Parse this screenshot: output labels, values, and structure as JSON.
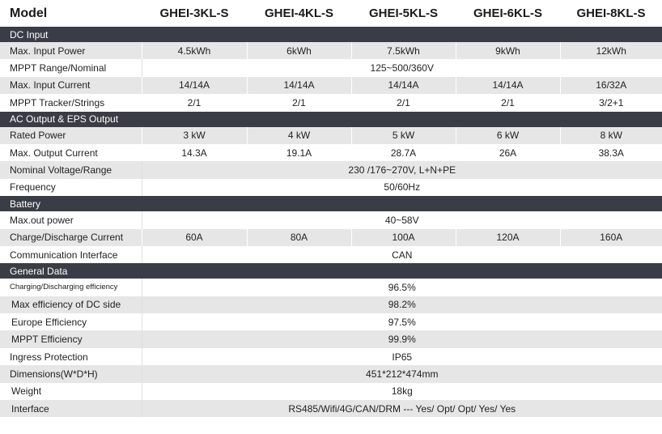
{
  "header": {
    "model_label": "Model",
    "models": [
      "GHEI-3KL-S",
      "GHEI-4KL-S",
      "GHEI-5KL-S",
      "GHEI-6KL-S",
      "GHEI-8KL-S"
    ]
  },
  "sections": {
    "dc_input": {
      "title": "DC Input",
      "max_input_power": {
        "label": "Max. Input Power",
        "values": [
          "4.5kWh",
          "6kWh",
          "7.5kWh",
          "9kWh",
          "12kWh"
        ]
      },
      "mppt_range": {
        "label": "MPPT Range/Nominal",
        "value": "125~500/360V"
      },
      "max_input_current": {
        "label": "Max. Input Current",
        "values": [
          "14/14A",
          "14/14A",
          "14/14A",
          "14/14A",
          "16/32A"
        ]
      },
      "mppt_tracker": {
        "label": "MPPT Tracker/Strings",
        "values": [
          "2/1",
          "2/1",
          "2/1",
          "2/1",
          "3/2+1"
        ]
      }
    },
    "ac_output": {
      "title": "AC Output & EPS Output",
      "rated_power": {
        "label": "Rated Power",
        "values": [
          "3 kW",
          "4 kW",
          "5 kW",
          "6 kW",
          "8 kW"
        ]
      },
      "max_output_current": {
        "label": "Max. Output Current",
        "values": [
          "14.3A",
          "19.1A",
          "28.7A",
          "26A",
          "38.3A"
        ]
      },
      "nominal_voltage": {
        "label": "Nominal Voltage/Range",
        "value": "230 /176~270V, L+N+PE"
      },
      "frequency": {
        "label": "Frequency",
        "value": "50/60Hz"
      }
    },
    "battery": {
      "title": "Battery",
      "max_out_power": {
        "label": "Max.out power",
        "value": "40~58V"
      },
      "charge_current": {
        "label": "Charge/Discharge Current",
        "values": [
          "60A",
          "80A",
          "100A",
          "120A",
          "160A"
        ]
      },
      "comm_interface": {
        "label": "Communication Interface",
        "value": "CAN"
      }
    },
    "general": {
      "title": "General Data",
      "charging_eff": {
        "label": "Charging/Discharging efficiency",
        "value": "96.5%"
      },
      "max_eff_dc": {
        "label": "Max efficiency of DC side",
        "value": "98.2%"
      },
      "europe_eff": {
        "label": "Europe Efficiency",
        "value": "97.5%"
      },
      "mppt_eff": {
        "label": "MPPT Efficiency",
        "value": "99.9%"
      },
      "ingress": {
        "label": "Ingress Protection",
        "value": "IP65"
      },
      "dimensions": {
        "label": "Dimensions(W*D*H)",
        "value": "451*212*474mm"
      },
      "weight": {
        "label": "Weight",
        "value": "18kg"
      },
      "interface": {
        "label": "Interface",
        "value": "RS485/Wifi/4G/CAN/DRM --- Yes/ Opt/ Opt/ Yes/ Yes"
      }
    }
  },
  "colors": {
    "section_bg": "#3a3d45",
    "row_shade": "#e6e6e6"
  }
}
